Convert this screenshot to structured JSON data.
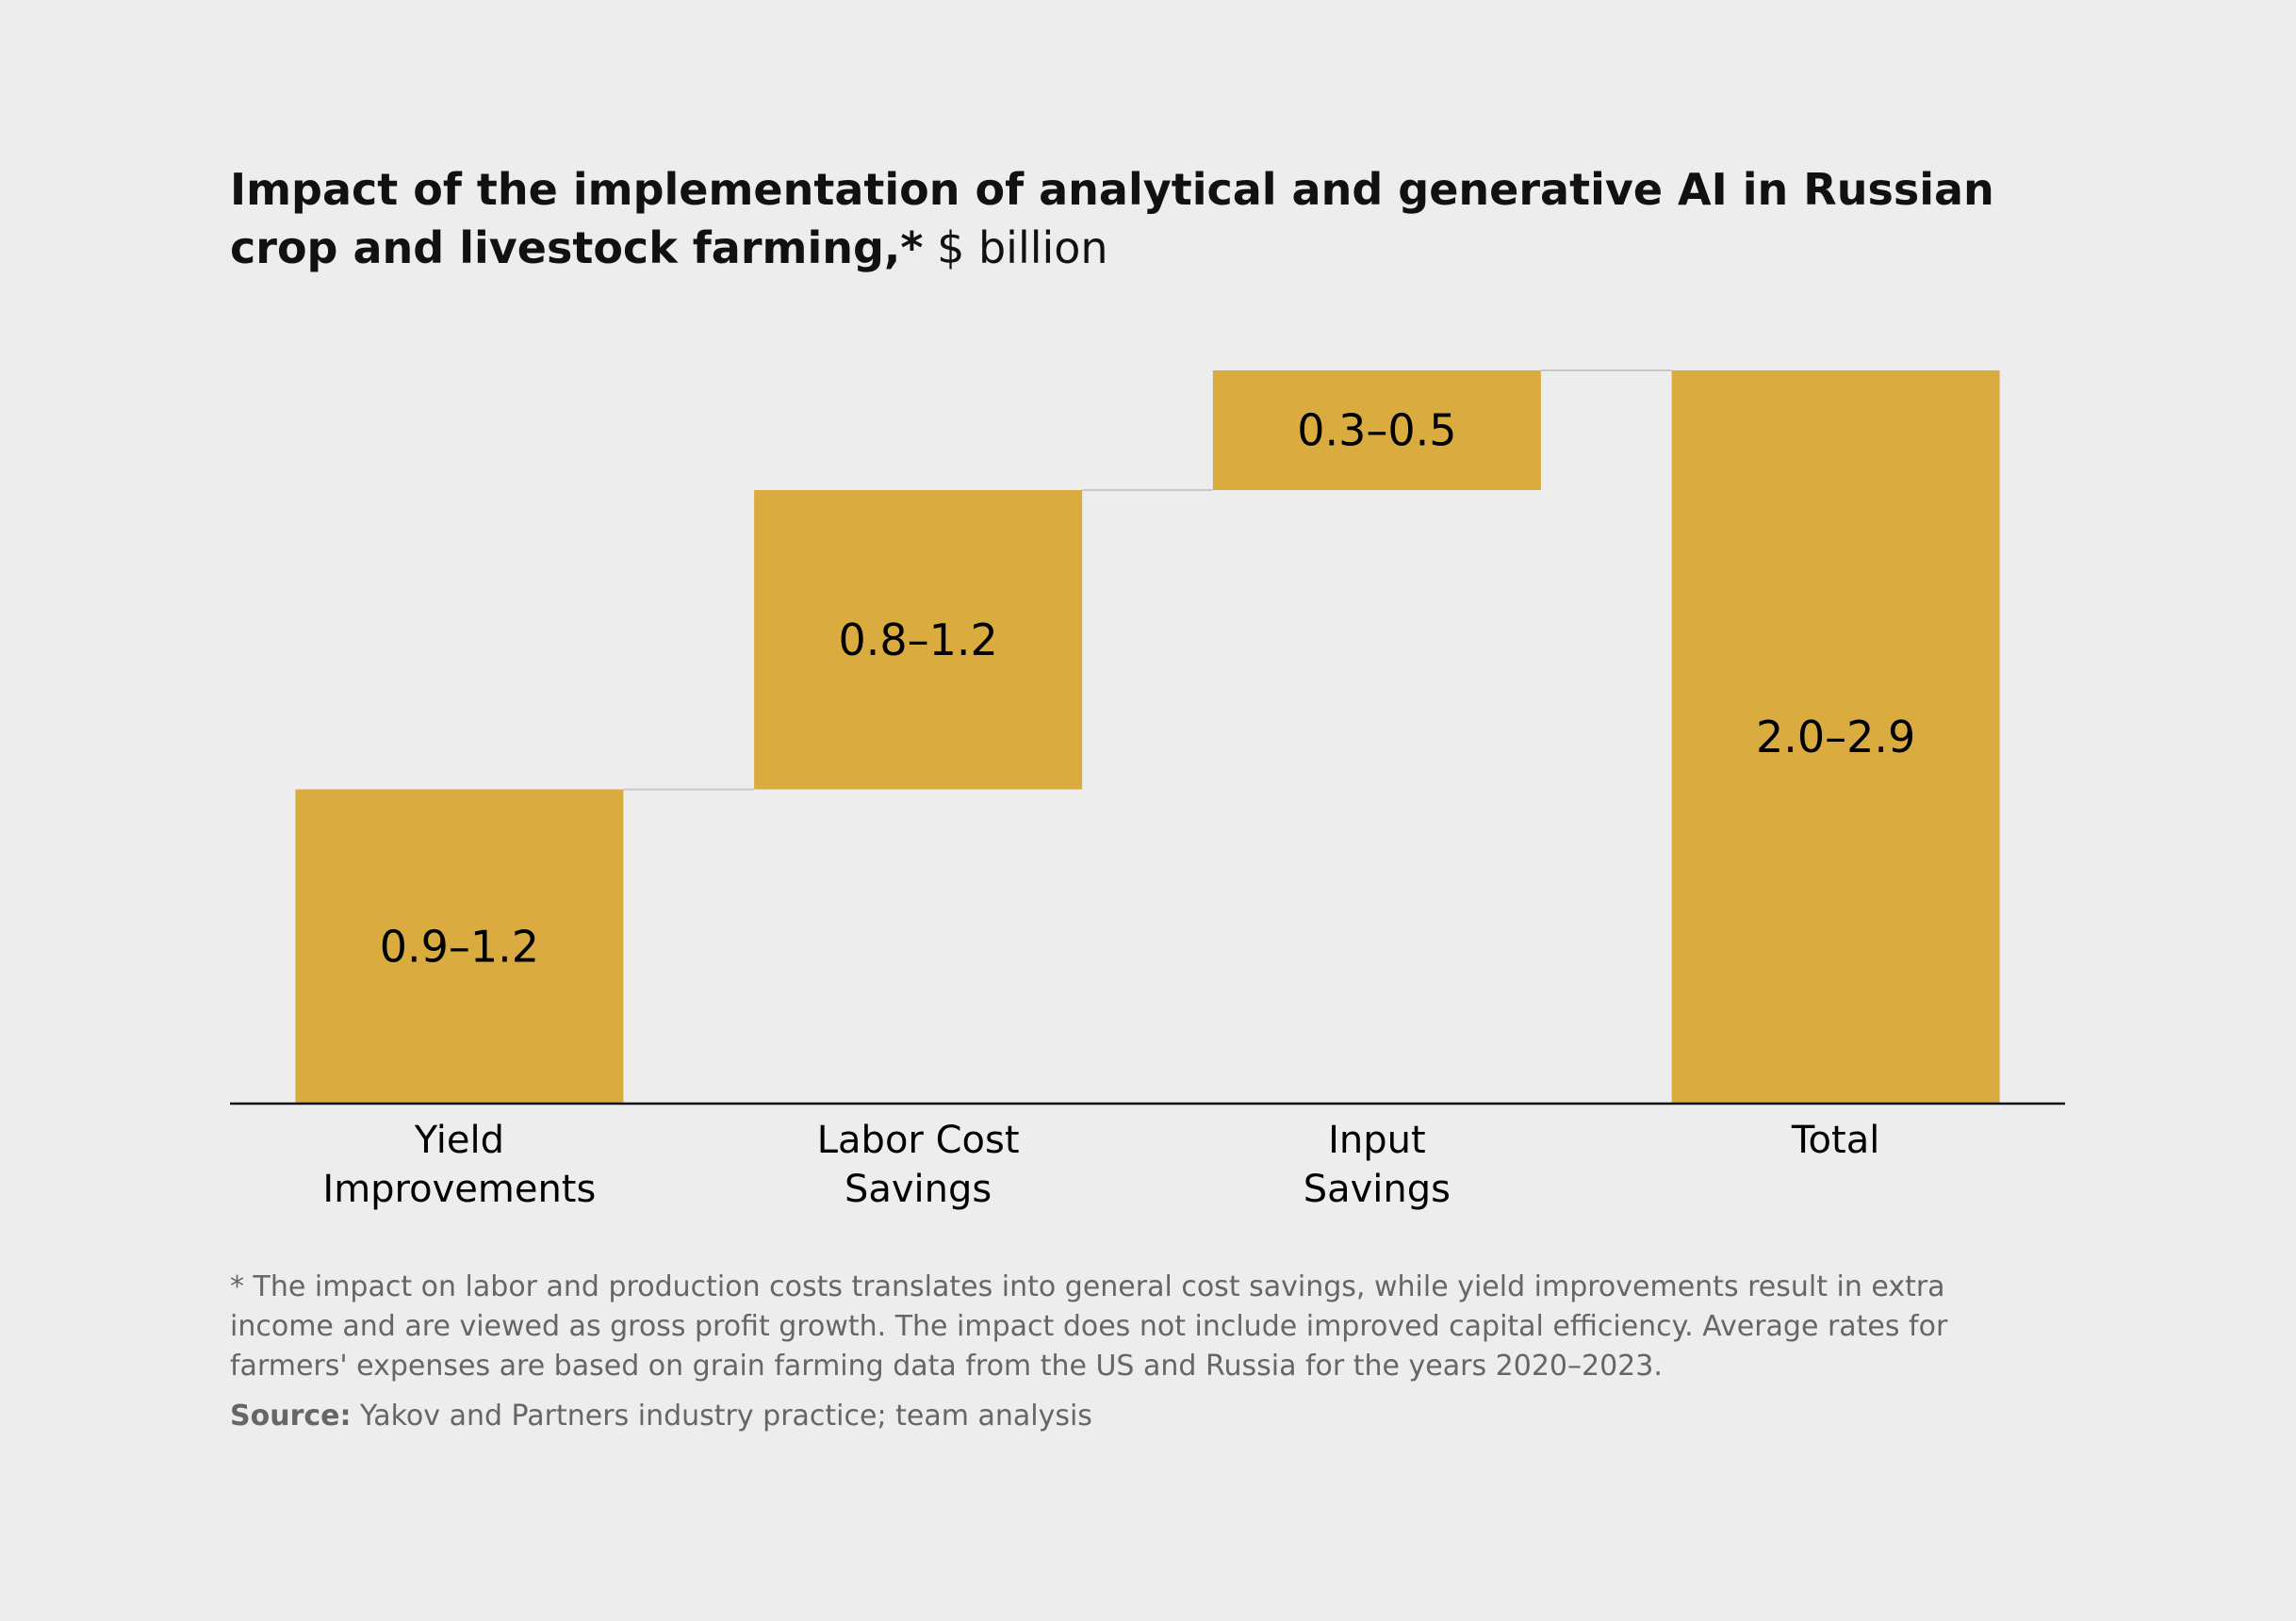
{
  "chart_data": {
    "type": "waterfall",
    "title": "Impact of the implementation of analytical and generative AI in Russian crop and livestock farming,*",
    "subtitle": "$ billion",
    "categories": [
      [
        "Yield",
        "Improvements"
      ],
      [
        "Labor Cost",
        "Savings"
      ],
      [
        "Input",
        "Savings"
      ],
      [
        "Total"
      ]
    ],
    "ranges": [
      [
        0.9,
        1.2
      ],
      [
        0.8,
        1.2
      ],
      [
        0.3,
        0.5
      ],
      [
        2.0,
        2.9
      ]
    ],
    "value_labels": [
      "0.9–1.2",
      "0.8–1.2",
      "0.3–0.5",
      "2.0–2.9"
    ],
    "is_total": [
      false,
      false,
      false,
      true
    ],
    "color": "#daab3f",
    "footnote": "* The impact on labor and production costs translates into general cost savings, while yield improvements result in extra income and are viewed as gross profit growth. The impact does not include improved capital efficiency. Average rates for farmers' expenses are based on grain farming data from the US and Russia for the years 2020–2023.",
    "source_label": "Source:",
    "source": "Yakov and Partners industry practice; team analysis"
  }
}
